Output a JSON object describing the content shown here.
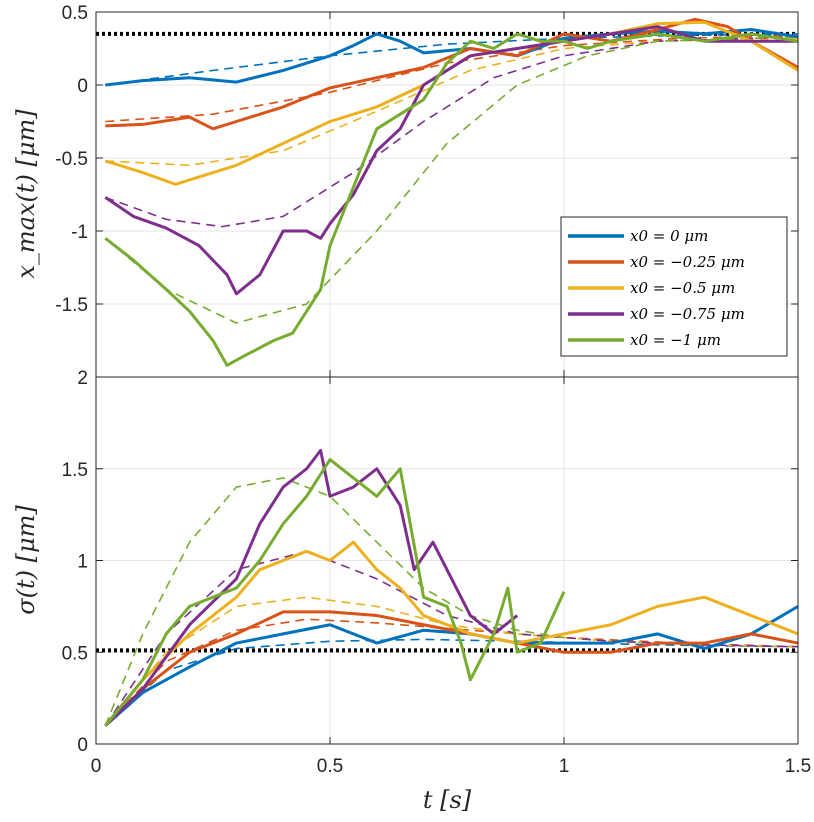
{
  "chart_data": [
    {
      "type": "line",
      "panel": "top",
      "ylabel": "x_max(t) [μm]",
      "xlim": [
        0,
        1.5
      ],
      "ylim": [
        -2,
        0.5
      ],
      "yticks": [
        0.5,
        0,
        -0.5,
        -1,
        -1.5
      ],
      "ytick_labels": [
        "0.5",
        "0",
        "-0.5",
        "-1",
        "-1.5"
      ],
      "xticks": [
        0,
        0.5,
        1,
        1.5
      ],
      "grid": true,
      "reference_line": {
        "y": 0.35,
        "style": "dotted",
        "color": "#000000"
      },
      "legend": {
        "placement": "right",
        "entries": [
          "x0 = 0 μm",
          "x0 = −0.25 μm",
          "x0 = −0.5 μm",
          "x0 = −0.75 μm",
          "x0 = −1 μm"
        ]
      },
      "series": [
        {
          "name": "x0 = 0 μm",
          "color": "#0072BD",
          "t_end": 1.5,
          "x": [
            0.02,
            0.1,
            0.2,
            0.3,
            0.4,
            0.5,
            0.55,
            0.6,
            0.65,
            0.7,
            0.8,
            0.9,
            1.0,
            1.1,
            1.2,
            1.3,
            1.4,
            1.5
          ],
          "y": [
            0.0,
            0.03,
            0.05,
            0.02,
            0.1,
            0.2,
            0.27,
            0.35,
            0.3,
            0.22,
            0.25,
            0.2,
            0.32,
            0.35,
            0.37,
            0.35,
            0.38,
            0.33
          ],
          "fit_x": [
            0.02,
            0.25,
            0.5,
            0.75,
            1.0,
            1.25,
            1.5
          ],
          "fit_y": [
            0.0,
            0.1,
            0.2,
            0.28,
            0.32,
            0.34,
            0.35
          ]
        },
        {
          "name": "x0 = −0.25 μm",
          "color": "#D95319",
          "t_end": 1.5,
          "x": [
            0.02,
            0.1,
            0.2,
            0.25,
            0.3,
            0.4,
            0.5,
            0.6,
            0.7,
            0.8,
            0.9,
            1.0,
            1.1,
            1.2,
            1.28,
            1.35,
            1.4,
            1.5
          ],
          "y": [
            -0.28,
            -0.27,
            -0.22,
            -0.3,
            -0.25,
            -0.15,
            -0.02,
            0.05,
            0.12,
            0.25,
            0.2,
            0.35,
            0.3,
            0.38,
            0.45,
            0.4,
            0.3,
            0.12
          ],
          "fit_x": [
            0.02,
            0.25,
            0.5,
            0.75,
            1.0,
            1.25,
            1.5
          ],
          "fit_y": [
            -0.25,
            -0.2,
            -0.05,
            0.15,
            0.27,
            0.32,
            0.34
          ]
        },
        {
          "name": "x0 = −0.5 μm",
          "color": "#EDB120",
          "t_end": 1.5,
          "x": [
            0.02,
            0.1,
            0.17,
            0.25,
            0.3,
            0.4,
            0.5,
            0.6,
            0.7,
            0.8,
            0.9,
            1.0,
            1.1,
            1.2,
            1.3,
            1.4,
            1.5
          ],
          "y": [
            -0.52,
            -0.6,
            -0.68,
            -0.6,
            -0.55,
            -0.4,
            -0.25,
            -0.15,
            0.0,
            0.2,
            0.25,
            0.3,
            0.35,
            0.42,
            0.43,
            0.3,
            0.1
          ],
          "fit_x": [
            0.02,
            0.2,
            0.4,
            0.6,
            0.8,
            1.0,
            1.2,
            1.5
          ],
          "fit_y": [
            -0.52,
            -0.55,
            -0.45,
            -0.18,
            0.1,
            0.25,
            0.3,
            0.32
          ]
        },
        {
          "name": "x0 = −0.75 μm",
          "color": "#7E2F8E",
          "t_end": 1.5,
          "x": [
            0.02,
            0.08,
            0.15,
            0.22,
            0.28,
            0.3,
            0.35,
            0.4,
            0.45,
            0.48,
            0.5,
            0.55,
            0.6,
            0.65,
            0.7,
            0.8,
            0.9,
            1.0,
            1.1,
            1.2,
            1.3,
            1.5
          ],
          "y": [
            -0.77,
            -0.9,
            -0.98,
            -1.1,
            -1.3,
            -1.43,
            -1.3,
            -1.0,
            -1.0,
            -1.05,
            -0.95,
            -0.75,
            -0.45,
            -0.3,
            0.0,
            0.2,
            0.25,
            0.3,
            0.35,
            0.4,
            0.3,
            0.3
          ],
          "fit_x": [
            0.02,
            0.15,
            0.27,
            0.4,
            0.55,
            0.7,
            0.85,
            1.0,
            1.2,
            1.5
          ],
          "fit_y": [
            -0.77,
            -0.92,
            -0.97,
            -0.9,
            -0.6,
            -0.25,
            0.05,
            0.2,
            0.3,
            0.33
          ]
        },
        {
          "name": "x0 = −1 μm",
          "color": "#77AC30",
          "t_end": 1.5,
          "x": [
            0.02,
            0.08,
            0.15,
            0.2,
            0.25,
            0.28,
            0.32,
            0.38,
            0.42,
            0.48,
            0.5,
            0.55,
            0.6,
            0.65,
            0.7,
            0.75,
            0.8,
            0.85,
            0.9,
            0.95,
            1.0,
            1.05,
            1.1,
            1.2,
            1.3,
            1.4,
            1.5
          ],
          "y": [
            -1.05,
            -1.2,
            -1.4,
            -1.55,
            -1.75,
            -1.92,
            -1.85,
            -1.75,
            -1.7,
            -1.4,
            -1.1,
            -0.7,
            -0.3,
            -0.2,
            -0.1,
            0.15,
            0.3,
            0.25,
            0.35,
            0.3,
            0.3,
            0.25,
            0.3,
            0.35,
            0.3,
            0.35,
            0.3
          ],
          "fit_x": [
            0.02,
            0.15,
            0.3,
            0.45,
            0.6,
            0.75,
            0.9,
            1.05,
            1.2,
            1.5
          ],
          "fit_y": [
            -1.05,
            -1.4,
            -1.63,
            -1.5,
            -1.0,
            -0.4,
            0.0,
            0.2,
            0.3,
            0.33
          ]
        }
      ]
    },
    {
      "type": "line",
      "panel": "bottom",
      "xlabel": "t [s]",
      "ylabel": "σ(t) [μm]",
      "xlim": [
        0,
        1.5
      ],
      "ylim": [
        0,
        2
      ],
      "yticks": [
        0,
        0.5,
        1,
        1.5,
        2
      ],
      "ytick_labels": [
        "0",
        "0.5",
        "1",
        "1.5",
        "2"
      ],
      "xticks": [
        0,
        0.5,
        1,
        1.5
      ],
      "xtick_labels": [
        "0",
        "0.5",
        "1",
        "1.5"
      ],
      "grid": true,
      "reference_line": {
        "y": 0.51,
        "style": "dotted",
        "color": "#000000"
      },
      "series": [
        {
          "name": "x0 = 0 μm",
          "color": "#0072BD",
          "x": [
            0.02,
            0.1,
            0.2,
            0.3,
            0.4,
            0.5,
            0.6,
            0.7,
            0.8,
            0.9,
            1.0,
            1.1,
            1.2,
            1.3,
            1.4,
            1.5
          ],
          "y": [
            0.1,
            0.28,
            0.42,
            0.55,
            0.6,
            0.65,
            0.55,
            0.62,
            0.6,
            0.55,
            0.55,
            0.55,
            0.6,
            0.52,
            0.6,
            0.75
          ],
          "fit_x": [
            0.02,
            0.15,
            0.3,
            0.5,
            0.7,
            0.9,
            1.2,
            1.5
          ],
          "fit_y": [
            0.1,
            0.4,
            0.52,
            0.56,
            0.57,
            0.56,
            0.54,
            0.53
          ]
        },
        {
          "name": "x0 = −0.25 μm",
          "color": "#D95319",
          "x": [
            0.02,
            0.1,
            0.2,
            0.3,
            0.4,
            0.5,
            0.6,
            0.7,
            0.8,
            0.9,
            1.0,
            1.1,
            1.2,
            1.3,
            1.4,
            1.5
          ],
          "y": [
            0.1,
            0.3,
            0.5,
            0.6,
            0.72,
            0.72,
            0.7,
            0.65,
            0.6,
            0.55,
            0.5,
            0.5,
            0.55,
            0.55,
            0.6,
            0.55
          ],
          "fit_x": [
            0.02,
            0.15,
            0.3,
            0.45,
            0.6,
            0.8,
            1.0,
            1.25,
            1.5
          ],
          "fit_y": [
            0.1,
            0.45,
            0.62,
            0.68,
            0.66,
            0.62,
            0.58,
            0.55,
            0.53
          ]
        },
        {
          "name": "x0 = −0.5 μm",
          "color": "#EDB120",
          "x": [
            0.02,
            0.1,
            0.2,
            0.3,
            0.35,
            0.4,
            0.45,
            0.5,
            0.55,
            0.6,
            0.65,
            0.7,
            0.8,
            0.9,
            1.0,
            1.1,
            1.2,
            1.3,
            1.4,
            1.5
          ],
          "y": [
            0.1,
            0.35,
            0.6,
            0.8,
            0.95,
            1.0,
            1.05,
            1.0,
            1.1,
            0.95,
            0.85,
            0.7,
            0.6,
            0.55,
            0.6,
            0.65,
            0.75,
            0.8,
            0.7,
            0.6
          ],
          "fit_x": [
            0.02,
            0.15,
            0.3,
            0.45,
            0.6,
            0.75,
            0.9,
            1.1,
            1.3,
            1.5
          ],
          "fit_y": [
            0.1,
            0.5,
            0.75,
            0.8,
            0.75,
            0.65,
            0.6,
            0.56,
            0.54,
            0.53
          ]
        },
        {
          "name": "x0 = −0.75 μm",
          "color": "#7E2F8E",
          "x": [
            0.02,
            0.1,
            0.2,
            0.3,
            0.35,
            0.4,
            0.45,
            0.48,
            0.5,
            0.55,
            0.6,
            0.65,
            0.68,
            0.72,
            0.8,
            0.85,
            0.9
          ],
          "y": [
            0.1,
            0.3,
            0.65,
            0.9,
            1.2,
            1.4,
            1.5,
            1.6,
            1.35,
            1.4,
            1.5,
            1.3,
            0.95,
            1.1,
            0.7,
            0.6,
            0.7
          ],
          "fit_x": [
            0.02,
            0.15,
            0.3,
            0.45,
            0.6,
            0.75,
            0.9,
            1.1,
            1.3,
            1.5
          ],
          "fit_y": [
            0.1,
            0.6,
            0.95,
            1.05,
            0.9,
            0.7,
            0.6,
            0.56,
            0.54,
            0.53
          ]
        },
        {
          "name": "x0 = −1 μm",
          "color": "#77AC30",
          "x": [
            0.02,
            0.1,
            0.15,
            0.2,
            0.3,
            0.35,
            0.4,
            0.45,
            0.5,
            0.55,
            0.6,
            0.65,
            0.7,
            0.75,
            0.78,
            0.8,
            0.85,
            0.88,
            0.9,
            0.95,
            1.0
          ],
          "y": [
            0.1,
            0.35,
            0.6,
            0.75,
            0.85,
            1.0,
            1.2,
            1.35,
            1.55,
            1.45,
            1.35,
            1.5,
            0.8,
            0.75,
            0.55,
            0.35,
            0.6,
            0.85,
            0.5,
            0.55,
            0.83
          ],
          "fit_x": [
            0.02,
            0.1,
            0.2,
            0.3,
            0.4,
            0.5,
            0.6,
            0.7,
            0.8,
            0.9,
            1.0
          ],
          "fit_y": [
            0.1,
            0.6,
            1.1,
            1.4,
            1.45,
            1.35,
            1.1,
            0.85,
            0.7,
            0.62,
            0.58
          ]
        }
      ]
    }
  ],
  "legend": {
    "entries": [
      "x0 = 0 μm",
      "x0 = −0.25 μm",
      "x0 = −0.5 μm",
      "x0 = −0.75 μm",
      "x0 = −1 μm"
    ],
    "colors": [
      "#0072BD",
      "#D95319",
      "#EDB120",
      "#7E2F8E",
      "#77AC30"
    ]
  },
  "axis": {
    "top_ylabel": "x_max(t) [μm]",
    "bottom_ylabel": "σ(t) [μm]",
    "xlabel": "t [s]"
  }
}
